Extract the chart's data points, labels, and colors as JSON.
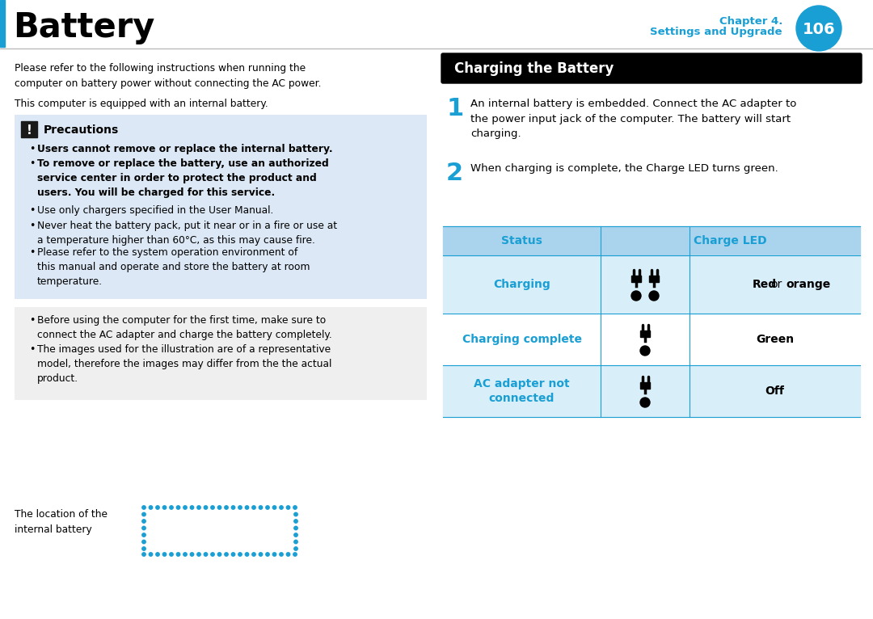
{
  "title": "Battery",
  "chapter_line1": "Chapter 4.",
  "chapter_line2": "Settings and Upgrade",
  "page_num": "106",
  "blue_color": "#1a9fd4",
  "black_color": "#000000",
  "precaution_bg": "#dce8f5",
  "note_bg": "#e8e8e8",
  "header_row_bg": "#aad4ed",
  "section_bg": "#d8eef9",
  "white": "#ffffff",
  "intro1": "Please refer to the following instructions when running the\ncomputer on battery power without connecting the AC power.",
  "intro2": "This computer is equipped with an internal battery.",
  "prec_title": "Precautions",
  "prec_bold1": "Users cannot remove or replace the internal battery.",
  "prec_bold2": "To remove or replace the battery, use an authorized\nservice center in order to protect the product and\nusers. You will be charged for this service.",
  "prec_reg1": "Use only chargers specified in the User Manual.",
  "prec_reg2": "Never heat the battery pack, put it near or in a fire or use at\na temperature higher than 60°C, as this may cause fire.",
  "prec_reg3": "Please refer to the system operation environment of\nthis manual and operate and store the battery at room\ntemperature.",
  "note1": "Before using the computer for the first time, make sure to\nconnect the AC adapter and charge the battery completely.",
  "note2": "The images used for the illustration are of a representative\nmodel, therefore the images may differ from the the actual\nproduct.",
  "right_header": "Charging the Battery",
  "step1_num": "1",
  "step1_text": "An internal battery is embedded. Connect the AC adapter to\nthe power input jack of the computer. The battery will start\ncharging.",
  "step2_num": "2",
  "step2_text": "When charging is complete, the Charge LED turns green.",
  "tbl_h1": "Status",
  "tbl_h2": "Charge LED",
  "tbl_s1": "Charging",
  "tbl_s2": "Charging complete",
  "tbl_s3": "AC adapter not\nconnected",
  "tbl_led1": "Red or orange",
  "tbl_led2": "Green",
  "tbl_led3": "Off",
  "bat_label": "The location of the\ninternal battery"
}
